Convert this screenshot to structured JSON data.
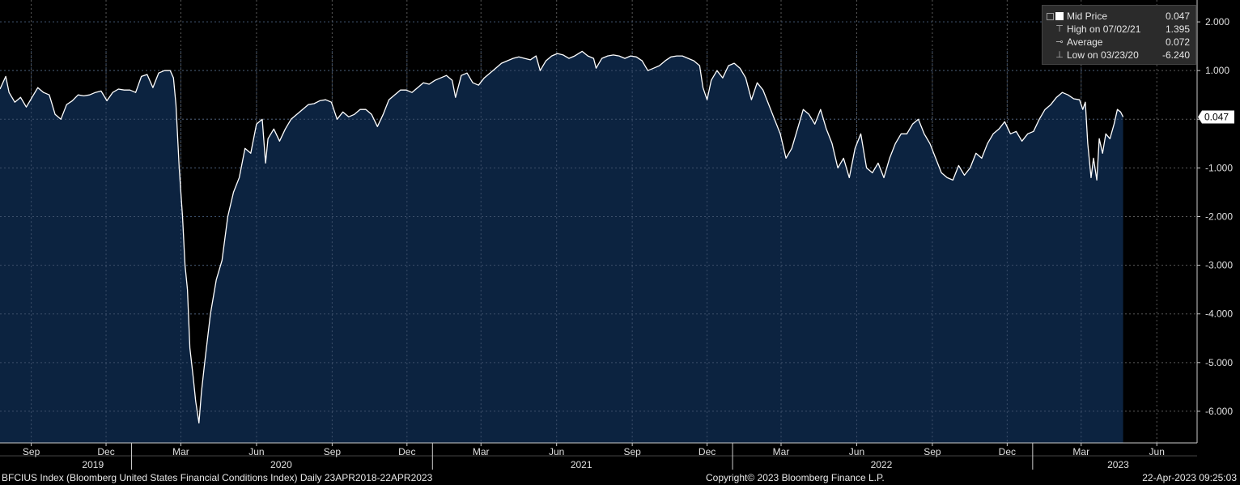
{
  "chart_data": {
    "type": "area",
    "title": "",
    "xlabel": "",
    "ylabel": "",
    "ylim": [
      -6.65,
      2.45
    ],
    "y_ticks": [
      "2.000",
      "1.000",
      "",
      "-1.000",
      "-2.000",
      "-3.000",
      "-4.000",
      "-5.000",
      "-6.000"
    ],
    "y_tick_values": [
      2,
      1,
      0,
      -1,
      -2,
      -3,
      -4,
      -5,
      -6
    ],
    "x_month_ticks": [
      {
        "date": "2019-09-01",
        "label": "Sep"
      },
      {
        "date": "2019-12-01",
        "label": "Dec"
      },
      {
        "date": "2020-03-01",
        "label": "Mar"
      },
      {
        "date": "2020-06-01",
        "label": "Jun"
      },
      {
        "date": "2020-09-01",
        "label": "Sep"
      },
      {
        "date": "2020-12-01",
        "label": "Dec"
      },
      {
        "date": "2021-03-01",
        "label": "Mar"
      },
      {
        "date": "2021-06-01",
        "label": "Jun"
      },
      {
        "date": "2021-09-01",
        "label": "Sep"
      },
      {
        "date": "2021-12-01",
        "label": "Dec"
      },
      {
        "date": "2022-03-01",
        "label": "Mar"
      },
      {
        "date": "2022-06-01",
        "label": "Jun"
      },
      {
        "date": "2022-09-01",
        "label": "Sep"
      },
      {
        "date": "2022-12-01",
        "label": "Dec"
      },
      {
        "date": "2023-03-01",
        "label": "Mar"
      },
      {
        "date": "2023-06-01",
        "label": "Jun"
      }
    ],
    "x_year_ticks": [
      {
        "date": "2019-11-15",
        "label": "2019",
        "sep": "2020-01-01"
      },
      {
        "date": "2020-07-01",
        "label": "2020",
        "sep": "2021-01-01"
      },
      {
        "date": "2021-07-01",
        "label": "2021",
        "sep": "2022-01-01"
      },
      {
        "date": "2022-07-01",
        "label": "2022",
        "sep": "2023-01-01"
      },
      {
        "date": "2023-04-15",
        "label": "2023",
        "sep": null
      }
    ],
    "x_range": [
      "2019-07-25",
      "2023-07-20"
    ],
    "series": [
      {
        "name": "Mid Price",
        "color": "#ffffff",
        "fill": "#0c2340",
        "points": [
          [
            "2019-07-25",
            0.62
          ],
          [
            "2019-08-01",
            0.88
          ],
          [
            "2019-08-05",
            0.55
          ],
          [
            "2019-08-12",
            0.35
          ],
          [
            "2019-08-19",
            0.45
          ],
          [
            "2019-08-26",
            0.25
          ],
          [
            "2019-09-02",
            0.45
          ],
          [
            "2019-09-09",
            0.65
          ],
          [
            "2019-09-16",
            0.55
          ],
          [
            "2019-09-23",
            0.5
          ],
          [
            "2019-09-30",
            0.1
          ],
          [
            "2019-10-07",
            0.0
          ],
          [
            "2019-10-14",
            0.3
          ],
          [
            "2019-10-21",
            0.38
          ],
          [
            "2019-10-28",
            0.5
          ],
          [
            "2019-11-04",
            0.48
          ],
          [
            "2019-11-11",
            0.5
          ],
          [
            "2019-11-18",
            0.55
          ],
          [
            "2019-11-25",
            0.58
          ],
          [
            "2019-12-02",
            0.38
          ],
          [
            "2019-12-09",
            0.55
          ],
          [
            "2019-12-16",
            0.62
          ],
          [
            "2019-12-23",
            0.6
          ],
          [
            "2019-12-30",
            0.6
          ],
          [
            "2020-01-06",
            0.55
          ],
          [
            "2020-01-13",
            0.88
          ],
          [
            "2020-01-20",
            0.92
          ],
          [
            "2020-01-27",
            0.65
          ],
          [
            "2020-02-03",
            0.95
          ],
          [
            "2020-02-10",
            1.0
          ],
          [
            "2020-02-17",
            1.0
          ],
          [
            "2020-02-21",
            0.85
          ],
          [
            "2020-02-24",
            0.3
          ],
          [
            "2020-02-28",
            -1.0
          ],
          [
            "2020-03-03",
            -2.0
          ],
          [
            "2020-03-06",
            -3.0
          ],
          [
            "2020-03-09",
            -3.5
          ],
          [
            "2020-03-12",
            -4.7
          ],
          [
            "2020-03-16",
            -5.3
          ],
          [
            "2020-03-19",
            -5.8
          ],
          [
            "2020-03-23",
            -6.24
          ],
          [
            "2020-03-26",
            -5.6
          ],
          [
            "2020-03-30",
            -5.0
          ],
          [
            "2020-04-06",
            -4.0
          ],
          [
            "2020-04-13",
            -3.3
          ],
          [
            "2020-04-20",
            -2.9
          ],
          [
            "2020-04-27",
            -2.0
          ],
          [
            "2020-05-04",
            -1.5
          ],
          [
            "2020-05-11",
            -1.2
          ],
          [
            "2020-05-18",
            -0.6
          ],
          [
            "2020-05-25",
            -0.7
          ],
          [
            "2020-06-01",
            -0.1
          ],
          [
            "2020-06-08",
            0.0
          ],
          [
            "2020-06-12",
            -0.9
          ],
          [
            "2020-06-15",
            -0.4
          ],
          [
            "2020-06-22",
            -0.2
          ],
          [
            "2020-06-29",
            -0.45
          ],
          [
            "2020-07-06",
            -0.2
          ],
          [
            "2020-07-13",
            0.0
          ],
          [
            "2020-07-20",
            0.1
          ],
          [
            "2020-07-27",
            0.2
          ],
          [
            "2020-08-03",
            0.3
          ],
          [
            "2020-08-10",
            0.32
          ],
          [
            "2020-08-17",
            0.38
          ],
          [
            "2020-08-24",
            0.4
          ],
          [
            "2020-08-31",
            0.35
          ],
          [
            "2020-09-07",
            0.0
          ],
          [
            "2020-09-14",
            0.15
          ],
          [
            "2020-09-21",
            0.05
          ],
          [
            "2020-09-28",
            0.1
          ],
          [
            "2020-10-05",
            0.2
          ],
          [
            "2020-10-12",
            0.2
          ],
          [
            "2020-10-19",
            0.1
          ],
          [
            "2020-10-26",
            -0.15
          ],
          [
            "2020-11-02",
            0.1
          ],
          [
            "2020-11-09",
            0.4
          ],
          [
            "2020-11-16",
            0.5
          ],
          [
            "2020-11-23",
            0.6
          ],
          [
            "2020-11-30",
            0.6
          ],
          [
            "2020-12-07",
            0.55
          ],
          [
            "2020-12-14",
            0.65
          ],
          [
            "2020-12-21",
            0.75
          ],
          [
            "2020-12-28",
            0.72
          ],
          [
            "2021-01-04",
            0.8
          ],
          [
            "2021-01-11",
            0.85
          ],
          [
            "2021-01-18",
            0.9
          ],
          [
            "2021-01-25",
            0.8
          ],
          [
            "2021-01-29",
            0.45
          ],
          [
            "2021-02-05",
            0.9
          ],
          [
            "2021-02-12",
            0.95
          ],
          [
            "2021-02-19",
            0.75
          ],
          [
            "2021-02-26",
            0.7
          ],
          [
            "2021-03-05",
            0.85
          ],
          [
            "2021-03-12",
            0.95
          ],
          [
            "2021-03-19",
            1.05
          ],
          [
            "2021-03-26",
            1.15
          ],
          [
            "2021-04-02",
            1.2
          ],
          [
            "2021-04-09",
            1.25
          ],
          [
            "2021-04-16",
            1.28
          ],
          [
            "2021-04-23",
            1.25
          ],
          [
            "2021-04-30",
            1.22
          ],
          [
            "2021-05-07",
            1.3
          ],
          [
            "2021-05-12",
            1.0
          ],
          [
            "2021-05-19",
            1.2
          ],
          [
            "2021-05-26",
            1.3
          ],
          [
            "2021-06-02",
            1.35
          ],
          [
            "2021-06-09",
            1.32
          ],
          [
            "2021-06-16",
            1.25
          ],
          [
            "2021-06-23",
            1.3
          ],
          [
            "2021-07-02",
            1.395
          ],
          [
            "2021-07-09",
            1.3
          ],
          [
            "2021-07-16",
            1.25
          ],
          [
            "2021-07-19",
            1.05
          ],
          [
            "2021-07-26",
            1.25
          ],
          [
            "2021-08-02",
            1.3
          ],
          [
            "2021-08-09",
            1.32
          ],
          [
            "2021-08-16",
            1.3
          ],
          [
            "2021-08-23",
            1.25
          ],
          [
            "2021-08-30",
            1.3
          ],
          [
            "2021-09-06",
            1.28
          ],
          [
            "2021-09-13",
            1.2
          ],
          [
            "2021-09-20",
            1.0
          ],
          [
            "2021-09-27",
            1.05
          ],
          [
            "2021-10-04",
            1.1
          ],
          [
            "2021-10-11",
            1.2
          ],
          [
            "2021-10-18",
            1.28
          ],
          [
            "2021-10-25",
            1.3
          ],
          [
            "2021-11-01",
            1.3
          ],
          [
            "2021-11-08",
            1.25
          ],
          [
            "2021-11-15",
            1.2
          ],
          [
            "2021-11-22",
            1.1
          ],
          [
            "2021-11-26",
            0.65
          ],
          [
            "2021-12-01",
            0.4
          ],
          [
            "2021-12-06",
            0.8
          ],
          [
            "2021-12-13",
            1.0
          ],
          [
            "2021-12-20",
            0.85
          ],
          [
            "2021-12-27",
            1.1
          ],
          [
            "2022-01-03",
            1.15
          ],
          [
            "2022-01-10",
            1.05
          ],
          [
            "2022-01-17",
            0.85
          ],
          [
            "2022-01-24",
            0.4
          ],
          [
            "2022-01-31",
            0.75
          ],
          [
            "2022-02-07",
            0.6
          ],
          [
            "2022-02-14",
            0.3
          ],
          [
            "2022-02-21",
            0.0
          ],
          [
            "2022-02-28",
            -0.3
          ],
          [
            "2022-03-07",
            -0.8
          ],
          [
            "2022-03-14",
            -0.6
          ],
          [
            "2022-03-21",
            -0.2
          ],
          [
            "2022-03-28",
            0.2
          ],
          [
            "2022-04-04",
            0.1
          ],
          [
            "2022-04-11",
            -0.1
          ],
          [
            "2022-04-18",
            0.2
          ],
          [
            "2022-04-25",
            -0.2
          ],
          [
            "2022-05-02",
            -0.5
          ],
          [
            "2022-05-09",
            -1.0
          ],
          [
            "2022-05-16",
            -0.8
          ],
          [
            "2022-05-23",
            -1.2
          ],
          [
            "2022-05-30",
            -0.6
          ],
          [
            "2022-06-06",
            -0.3
          ],
          [
            "2022-06-13",
            -1.0
          ],
          [
            "2022-06-20",
            -1.1
          ],
          [
            "2022-06-27",
            -0.9
          ],
          [
            "2022-07-04",
            -1.2
          ],
          [
            "2022-07-11",
            -0.8
          ],
          [
            "2022-07-18",
            -0.5
          ],
          [
            "2022-07-25",
            -0.3
          ],
          [
            "2022-08-01",
            -0.3
          ],
          [
            "2022-08-08",
            -0.1
          ],
          [
            "2022-08-15",
            0.0
          ],
          [
            "2022-08-22",
            -0.3
          ],
          [
            "2022-08-29",
            -0.5
          ],
          [
            "2022-09-05",
            -0.8
          ],
          [
            "2022-09-12",
            -1.1
          ],
          [
            "2022-09-19",
            -1.2
          ],
          [
            "2022-09-26",
            -1.25
          ],
          [
            "2022-10-03",
            -0.95
          ],
          [
            "2022-10-10",
            -1.15
          ],
          [
            "2022-10-17",
            -1.0
          ],
          [
            "2022-10-24",
            -0.7
          ],
          [
            "2022-10-31",
            -0.8
          ],
          [
            "2022-11-07",
            -0.5
          ],
          [
            "2022-11-14",
            -0.3
          ],
          [
            "2022-11-21",
            -0.2
          ],
          [
            "2022-11-28",
            -0.05
          ],
          [
            "2022-12-05",
            -0.3
          ],
          [
            "2022-12-12",
            -0.25
          ],
          [
            "2022-12-19",
            -0.45
          ],
          [
            "2022-12-26",
            -0.3
          ],
          [
            "2023-01-02",
            -0.25
          ],
          [
            "2023-01-09",
            0.0
          ],
          [
            "2023-01-16",
            0.2
          ],
          [
            "2023-01-23",
            0.3
          ],
          [
            "2023-01-30",
            0.45
          ],
          [
            "2023-02-06",
            0.55
          ],
          [
            "2023-02-13",
            0.5
          ],
          [
            "2023-02-20",
            0.42
          ],
          [
            "2023-02-27",
            0.4
          ],
          [
            "2023-03-03",
            0.2
          ],
          [
            "2023-03-06",
            0.35
          ],
          [
            "2023-03-09",
            -0.5
          ],
          [
            "2023-03-13",
            -1.2
          ],
          [
            "2023-03-16",
            -0.8
          ],
          [
            "2023-03-20",
            -1.25
          ],
          [
            "2023-03-23",
            -0.4
          ],
          [
            "2023-03-27",
            -0.7
          ],
          [
            "2023-03-31",
            -0.3
          ],
          [
            "2023-04-05",
            -0.4
          ],
          [
            "2023-04-10",
            -0.1
          ],
          [
            "2023-04-14",
            0.2
          ],
          [
            "2023-04-18",
            0.15
          ],
          [
            "2023-04-21",
            0.047
          ]
        ]
      }
    ],
    "last_value_label": "0.047"
  },
  "legend": {
    "items": [
      {
        "label": "Mid Price",
        "value": "0.047",
        "icon": "square-swatch-icon"
      },
      {
        "label": "High on 07/02/21",
        "value": "1.395",
        "icon": "high-marker-icon"
      },
      {
        "label": "Average",
        "value": "0.072",
        "icon": "average-marker-icon"
      },
      {
        "label": "Low on 03/23/20",
        "value": "-6.240",
        "icon": "low-marker-icon"
      }
    ]
  },
  "footer": {
    "security": "BFCIUS Index (Bloomberg United States Financial Conditions Index)  Daily 23APR2018-22APR2023",
    "copyright": "Copyright© 2023 Bloomberg Finance L.P.",
    "timestamp": "22-Apr-2023 09:25:03"
  },
  "colors": {
    "background": "#000000",
    "area_fill": "#0c2340",
    "line": "#ffffff",
    "grid": "#5a5a5a",
    "axis_text": "#e0e0e0"
  }
}
